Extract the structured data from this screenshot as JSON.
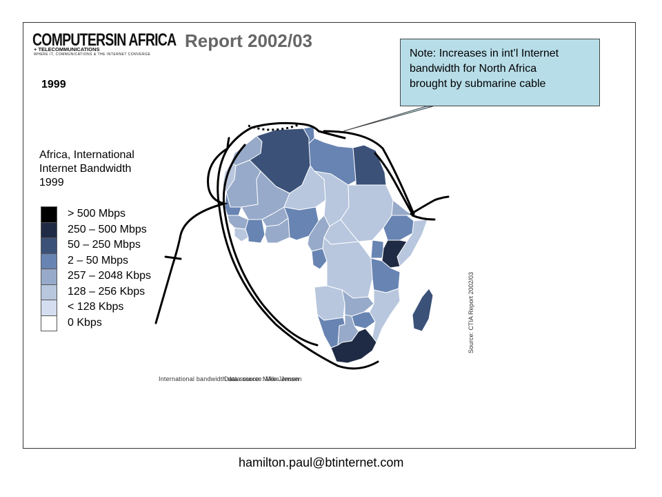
{
  "logo": {
    "main": "COMPUTERSIN AFRICA",
    "sub": "+ TELECOMMUNICATIONS",
    "tagline": "WHERE IT, COMMUNICATIONS & THE INTERNET CONVERGE"
  },
  "report_title": "Report 2002/03",
  "year": "1999",
  "legend": {
    "title_lines": [
      "Africa, International",
      "Internet Bandwidth",
      "1999"
    ],
    "items": [
      {
        "label": "> 500 Mbps",
        "color": "#000000"
      },
      {
        "label": "250 – 500 Mbps",
        "color": "#1f2b45"
      },
      {
        "label": "50 – 250 Mbps",
        "color": "#3b5178"
      },
      {
        "label": "2 – 50 Mbps",
        "color": "#6884b2"
      },
      {
        "label": "257 – 2048 Kbps",
        "color": "#97aac9"
      },
      {
        "label": "128 – 256 Kbps",
        "color": "#b8c7de"
      },
      {
        "label": "< 128 Kbps",
        "color": "#d4def0"
      },
      {
        "label": "0 Kbps",
        "color": "#ffffff"
      }
    ]
  },
  "callout": {
    "text_lines": [
      "Note: Increases in int’l Internet",
      "bandwidth for North Africa",
      "brought by submarine cable"
    ],
    "fill": "#b7dde8"
  },
  "map": {
    "credit_1": "International bandwidth data source: Mike Jensen",
    "credit_2": "Data source: Mike Jensen",
    "source_vertical": "Source: CTIA Report 2002/03"
  },
  "footer": {
    "email": "hamilton.paul@btinternet.com"
  }
}
